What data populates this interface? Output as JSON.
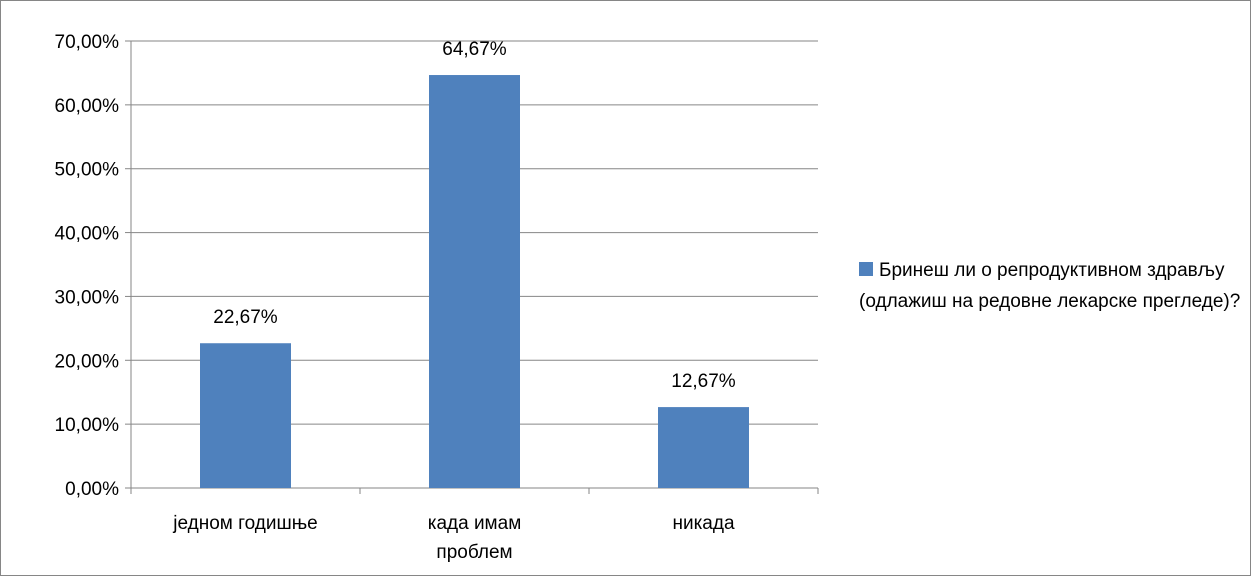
{
  "chart_data": {
    "type": "bar",
    "categories": [
      "једном годишње",
      "када имам проблем",
      "никада"
    ],
    "category_lines": [
      [
        "једном годишње"
      ],
      [
        "када имам",
        "проблем"
      ],
      [
        "никада"
      ]
    ],
    "series": [
      {
        "name": "Бринеш ли о репродуктивном здрављу (одлажиш на редовне лекарске прегледе)?",
        "values": [
          22.67,
          64.67,
          12.67
        ],
        "data_labels": [
          "22,67%",
          "64,67%",
          "12,67%"
        ],
        "color": "#4f81bd"
      }
    ],
    "ylim": [
      0,
      70
    ],
    "yticks": [
      0,
      10,
      20,
      30,
      40,
      50,
      60,
      70
    ],
    "ytick_labels": [
      "0,00%",
      "10,00%",
      "20,00%",
      "30,00%",
      "40,00%",
      "50,00%",
      "60,00%",
      "70,00%"
    ],
    "grid": true,
    "legend_position": "right",
    "title": "",
    "xlabel": "",
    "ylabel": ""
  }
}
